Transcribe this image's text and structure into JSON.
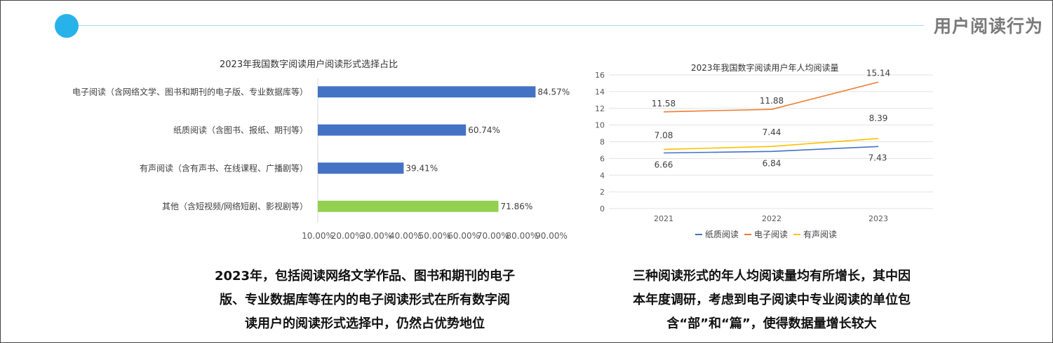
{
  "header": {
    "title": "用户阅读行为",
    "accent_color": "#27b3ea",
    "line_color": "#9fdcf2"
  },
  "bar_chart": {
    "title": "2023年我国数字阅读用户阅读形式选择占比",
    "caption_lines": [
      "2023年，包括阅读网络文学作品、图书和期刊的电子",
      "版、专业数据库等在内的电子阅读形式在所有数字阅",
      "读用户的阅读形式选择中，仍然占优势地位"
    ]
  },
  "line_chart": {
    "title": "2023年我国数字阅读用户年人均阅读量",
    "caption_lines": [
      "三种阅读形式的年人均阅读量均有所增长，其中因",
      "本年度调研，考虑到电子阅读中专业阅读的单位包",
      "含“部”和“篇”，使得数据量增长较大"
    ]
  },
  "chart_data": [
    {
      "type": "bar",
      "orientation": "horizontal",
      "title": "2023年我国数字阅读用户阅读形式选择占比",
      "categories": [
        "电子阅读（含网络文学、图书和期刊的电子版、专业数据库等）",
        "纸质阅读（含图书、报纸、期刊等）",
        "有声阅读（含有声书、在线课程、广播剧等）",
        "其他（含短视频/网络短剧、影视剧等）"
      ],
      "values": [
        84.57,
        60.74,
        39.41,
        71.86
      ],
      "value_labels": [
        "84.57%",
        "60.74%",
        "39.41%",
        "71.86%"
      ],
      "bar_colors": [
        "#4472c4",
        "#4472c4",
        "#4472c4",
        "#92d050"
      ],
      "xlim": [
        10,
        90
      ],
      "x_ticks": [
        10,
        20,
        30,
        40,
        50,
        60,
        70,
        80,
        90
      ],
      "x_tick_labels": [
        "10.00%",
        "20.00%",
        "30.00%",
        "40.00%",
        "50.00%",
        "60.00%",
        "70.00%",
        "80.00%",
        "90.00%"
      ],
      "grid": false
    },
    {
      "type": "line",
      "title": "2023年我国数字阅读用户年人均阅读量",
      "categories": [
        "2021",
        "2022",
        "2023"
      ],
      "series": [
        {
          "name": "纸质阅读",
          "values": [
            6.66,
            6.84,
            7.43
          ],
          "labels": [
            "6.66",
            "6.84",
            "7.43"
          ],
          "color": "#4472c4"
        },
        {
          "name": "电子阅读",
          "values": [
            11.58,
            11.88,
            15.14
          ],
          "labels": [
            "11.58",
            "11.88",
            "15.14"
          ],
          "color": "#ed7d31"
        },
        {
          "name": "有声阅读",
          "values": [
            7.08,
            7.44,
            8.39
          ],
          "labels": [
            "7.08",
            "7.44",
            "8.39"
          ],
          "color": "#ffc000"
        }
      ],
      "ylim": [
        0,
        16
      ],
      "y_ticks": [
        0,
        2,
        4,
        6,
        8,
        10,
        12,
        14,
        16
      ],
      "grid": true,
      "legend_position": "bottom"
    }
  ]
}
